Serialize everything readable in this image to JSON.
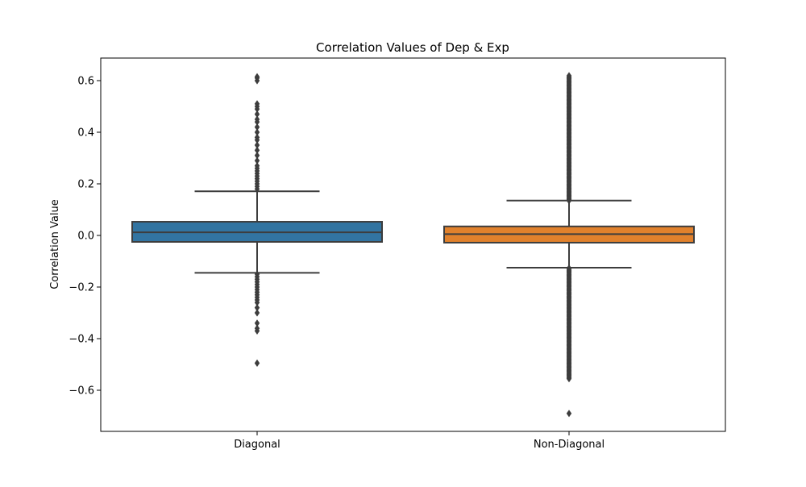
{
  "chart_data": {
    "type": "box",
    "title": "Correlation Values of Dep & Exp",
    "xlabel": "",
    "ylabel": "Correlation Value",
    "ylim": [
      -0.75,
      0.68
    ],
    "yticks": [
      0.6,
      0.4,
      0.2,
      0.0,
      -0.2,
      -0.4,
      -0.6
    ],
    "ytick_labels": [
      "0.6",
      "0.4",
      "0.2",
      "0.0",
      "−0.2",
      "−0.4",
      "−0.6"
    ],
    "categories": [
      "Diagonal",
      "Non-Diagonal"
    ],
    "grid": false,
    "boxes": [
      {
        "category": "Diagonal",
        "color": "#3274a1",
        "whisker_low": -0.145,
        "q1": -0.025,
        "median": 0.012,
        "q3": 0.053,
        "whisker_high": 0.171,
        "outliers_high": [
          0.18,
          0.19,
          0.2,
          0.21,
          0.22,
          0.23,
          0.24,
          0.25,
          0.26,
          0.27,
          0.29,
          0.31,
          0.33,
          0.35,
          0.37,
          0.38,
          0.4,
          0.42,
          0.44,
          0.45,
          0.47,
          0.49,
          0.5,
          0.51,
          0.6,
          0.61,
          0.615
        ],
        "outliers_low": [
          -0.15,
          -0.16,
          -0.17,
          -0.18,
          -0.19,
          -0.2,
          -0.21,
          -0.22,
          -0.23,
          -0.24,
          -0.25,
          -0.26,
          -0.28,
          -0.3,
          -0.34,
          -0.36,
          -0.37,
          -0.495
        ]
      },
      {
        "category": "Non-Diagonal",
        "color": "#e1812c",
        "whisker_low": -0.125,
        "q1": -0.028,
        "median": 0.005,
        "q3": 0.035,
        "whisker_high": 0.135,
        "outliers_high_range": [
          0.135,
          0.62
        ],
        "outliers_low_range": [
          -0.555,
          -0.125
        ],
        "outliers_extra": [
          -0.69
        ]
      }
    ]
  }
}
